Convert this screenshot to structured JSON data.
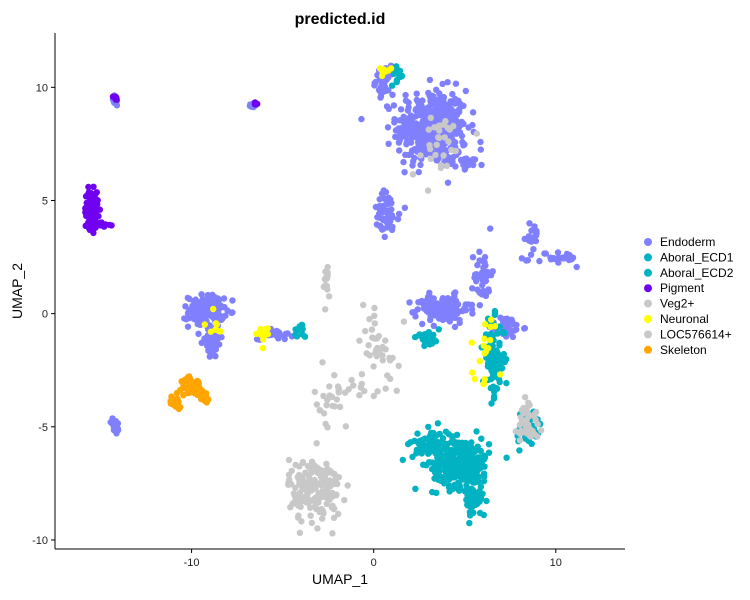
{
  "chart_data": {
    "type": "scatter",
    "title": "predicted.id",
    "xlabel": "UMAP_1",
    "ylabel": "UMAP_2",
    "xlim": [
      -17.5,
      13.8
    ],
    "ylim": [
      -10.4,
      12.4
    ],
    "xticks": [
      -10,
      0,
      10
    ],
    "yticks": [
      -10,
      -5,
      0,
      5,
      10
    ],
    "grid": false,
    "legend_position": "right",
    "series": [
      {
        "name": "Endoderm",
        "color": "#8080FF",
        "clusters": [
          {
            "x": 3.2,
            "y": 8.2,
            "sx": 1.6,
            "sy": 1.4,
            "n": 420
          },
          {
            "x": 0.6,
            "y": 10.3,
            "sx": 0.4,
            "sy": 0.5,
            "n": 40
          },
          {
            "x": 0.7,
            "y": 4.3,
            "sx": 0.6,
            "sy": 0.9,
            "n": 50
          },
          {
            "x": 5.0,
            "y": 6.7,
            "sx": 0.9,
            "sy": 0.2,
            "n": 30
          },
          {
            "x": -9.2,
            "y": 0.1,
            "sx": 0.8,
            "sy": 0.6,
            "n": 150
          },
          {
            "x": -8.9,
            "y": -1.3,
            "sx": 0.5,
            "sy": 0.6,
            "n": 40
          },
          {
            "x": -5.4,
            "y": -0.9,
            "sx": 0.8,
            "sy": 0.2,
            "n": 30
          },
          {
            "x": 3.8,
            "y": 0.2,
            "sx": 1.2,
            "sy": 0.5,
            "n": 130
          },
          {
            "x": 6.0,
            "y": 1.7,
            "sx": 0.4,
            "sy": 1.0,
            "n": 40
          },
          {
            "x": 7.2,
            "y": -0.6,
            "sx": 0.8,
            "sy": 0.4,
            "n": 40
          },
          {
            "x": 10.2,
            "y": 2.4,
            "sx": 1.1,
            "sy": 0.3,
            "n": 25
          },
          {
            "x": 8.7,
            "y": 3.5,
            "sx": 0.3,
            "sy": 0.6,
            "n": 15
          },
          {
            "x": -14.2,
            "y": -5.0,
            "sx": 0.2,
            "sy": 0.3,
            "n": 20
          },
          {
            "x": -14.2,
            "y": 9.4,
            "sx": 0.15,
            "sy": 0.2,
            "n": 12
          },
          {
            "x": -6.6,
            "y": 9.2,
            "sx": 0.2,
            "sy": 0.1,
            "n": 12
          }
        ]
      },
      {
        "name": "Aboral_ECD1",
        "color": "#00B2C2",
        "clusters": [
          {
            "x": 4.8,
            "y": -6.6,
            "sx": 1.3,
            "sy": 0.9,
            "n": 260
          },
          {
            "x": 6.6,
            "y": -2.0,
            "sx": 0.5,
            "sy": 1.4,
            "n": 90
          },
          {
            "x": 8.5,
            "y": -5.2,
            "sx": 0.6,
            "sy": 0.8,
            "n": 40
          },
          {
            "x": 3.0,
            "y": -1.0,
            "sx": 0.6,
            "sy": 0.4,
            "n": 20
          }
        ]
      },
      {
        "name": "Aboral_ECD2",
        "color": "#00B2C2",
        "clusters": [
          {
            "x": 3.2,
            "y": -5.8,
            "sx": 0.9,
            "sy": 0.6,
            "n": 80
          },
          {
            "x": 5.6,
            "y": -8.3,
            "sx": 0.5,
            "sy": 0.6,
            "n": 50
          },
          {
            "x": 1.3,
            "y": 10.6,
            "sx": 0.3,
            "sy": 0.4,
            "n": 12
          },
          {
            "x": -4.1,
            "y": -0.8,
            "sx": 0.3,
            "sy": 0.3,
            "n": 12
          }
        ]
      },
      {
        "name": "Pigment",
        "color": "#7000F0",
        "clusters": [
          {
            "x": -15.5,
            "y": 4.6,
            "sx": 0.3,
            "sy": 0.7,
            "n": 90
          },
          {
            "x": -15.0,
            "y": 3.95,
            "sx": 0.4,
            "sy": 0.1,
            "n": 20
          },
          {
            "x": -14.2,
            "y": 9.6,
            "sx": 0.1,
            "sy": 0.1,
            "n": 8
          },
          {
            "x": -6.5,
            "y": 9.3,
            "sx": 0.1,
            "sy": 0.1,
            "n": 6
          }
        ]
      },
      {
        "name": "Veg2+",
        "color": "#C8C8C8",
        "clusters": [
          {
            "x": -3.2,
            "y": -7.8,
            "sx": 1.2,
            "sy": 1.2,
            "n": 170
          },
          {
            "x": -2.2,
            "y": -3.8,
            "sx": 0.9,
            "sy": 1.0,
            "n": 30
          },
          {
            "x": 8.5,
            "y": -4.7,
            "sx": 0.5,
            "sy": 1.0,
            "n": 40
          }
        ]
      },
      {
        "name": "Neuronal",
        "color": "#FFFF00",
        "clusters": [
          {
            "x": -6.1,
            "y": -1.0,
            "sx": 0.3,
            "sy": 0.3,
            "n": 12
          },
          {
            "x": 0.6,
            "y": 10.8,
            "sx": 0.3,
            "sy": 0.2,
            "n": 8
          },
          {
            "x": 6.3,
            "y": -1.6,
            "sx": 0.8,
            "sy": 1.5,
            "n": 18
          },
          {
            "x": -8.8,
            "y": -0.4,
            "sx": 0.6,
            "sy": 0.6,
            "n": 8
          }
        ]
      },
      {
        "name": "LOC576614+",
        "color": "#C8C8C8",
        "clusters": [
          {
            "x": 0.2,
            "y": -1.6,
            "sx": 1.0,
            "sy": 1.8,
            "n": 40
          },
          {
            "x": 3.5,
            "y": 7.5,
            "sx": 1.3,
            "sy": 1.3,
            "n": 30
          },
          {
            "x": -2.6,
            "y": 1.3,
            "sx": 0.2,
            "sy": 0.8,
            "n": 15
          }
        ]
      },
      {
        "name": "Skeleton",
        "color": "#FFA500",
        "clusters": [
          {
            "x": -10.0,
            "y": -3.2,
            "sx": 0.5,
            "sy": 0.3,
            "n": 50
          },
          {
            "x": -10.9,
            "y": -3.9,
            "sx": 0.3,
            "sy": 0.2,
            "n": 15
          },
          {
            "x": -9.2,
            "y": -3.7,
            "sx": 0.2,
            "sy": 0.3,
            "n": 12
          }
        ]
      }
    ]
  }
}
